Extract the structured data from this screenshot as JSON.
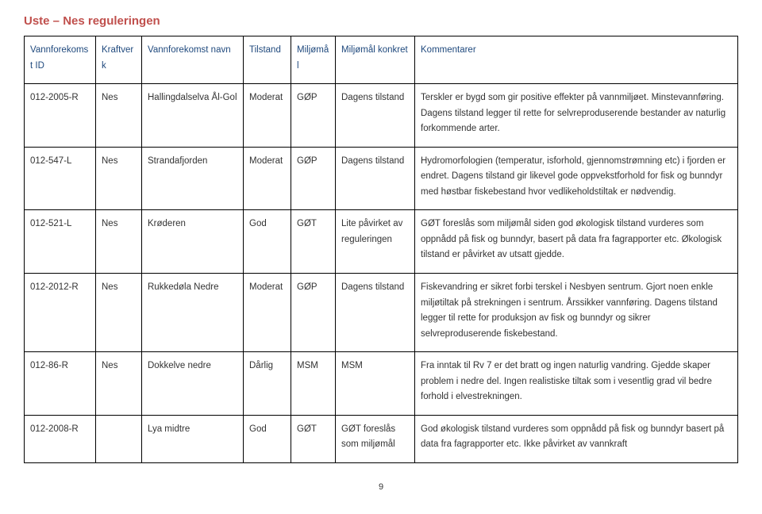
{
  "title": {
    "text": "Uste – Nes reguleringen",
    "color": "#c0504d"
  },
  "table": {
    "header": {
      "color": "#1f497d",
      "cols": [
        "Vannforekomst ID",
        "Kraftverk",
        "Vannforekomst navn",
        "Tilstand",
        "Miljømål",
        "Miljømål konkret",
        "Kommentarer"
      ]
    },
    "rows": [
      {
        "id": "012-2005-R",
        "kraft": "Nes",
        "navn": "Hallingdalselva Ål-Gol",
        "tilstand": "Moderat",
        "miljomal": "GØP",
        "konkret": "Dagens tilstand",
        "kommentar": "Terskler er bygd som gir positive effekter på vannmiljøet. Minstevannføring. Dagens tilstand legger til rette for selvreproduserende bestander av naturlig forkommende arter."
      },
      {
        "id": "012-547-L",
        "kraft": "Nes",
        "navn": "Strandafjorden",
        "tilstand": "Moderat",
        "miljomal": "GØP",
        "konkret": "Dagens tilstand",
        "kommentar": "Hydromorfologien (temperatur, isforhold, gjennomstrømning etc) i fjorden er endret. Dagens tilstand gir likevel gode oppvekstforhold for fisk og bunndyr med høstbar fiskebestand hvor vedlikeholdstiltak er nødvendig."
      },
      {
        "id": "012-521-L",
        "kraft": "Nes",
        "navn": "Krøderen",
        "tilstand": "God",
        "miljomal": "GØT",
        "konkret": "Lite påvirket av reguleringen",
        "kommentar": "GØT foreslås som miljømål siden god økologisk tilstand vurderes som oppnådd på fisk og bunndyr, basert på data fra fagrapporter etc. Økologisk tilstand er påvirket av utsatt gjedde."
      },
      {
        "id": "012-2012-R",
        "kraft": "Nes",
        "navn": "Rukkedøla Nedre",
        "tilstand": "Moderat",
        "miljomal": "GØP",
        "konkret": "Dagens tilstand",
        "kommentar": "Fiskevandring er sikret forbi terskel i Nesbyen sentrum. Gjort noen enkle miljøtiltak på strekningen i sentrum. Årssikker vannføring. Dagens tilstand legger til rette for produksjon av fisk og bunndyr og sikrer selvreproduserende fiskebestand."
      },
      {
        "id": "012-86-R",
        "kraft": "Nes",
        "navn": "Dokkelve nedre",
        "tilstand": "Dårlig",
        "miljomal": "MSM",
        "konkret": "MSM",
        "kommentar": "Fra inntak til Rv 7 er det bratt og ingen naturlig vandring. Gjedde skaper problem i nedre del. Ingen realistiske tiltak som i vesentlig grad vil bedre forhold i elvestrekningen."
      },
      {
        "id": "012-2008-R",
        "kraft": "",
        "navn": "Lya midtre",
        "tilstand": "God",
        "miljomal": "GØT",
        "konkret": "GØT foreslås som miljømål",
        "kommentar": "God økologisk tilstand vurderes som oppnådd på fisk og bunndyr basert på data fra fagrapporter etc. Ikke påvirket av vannkraft"
      }
    ]
  },
  "pageNumber": "9"
}
